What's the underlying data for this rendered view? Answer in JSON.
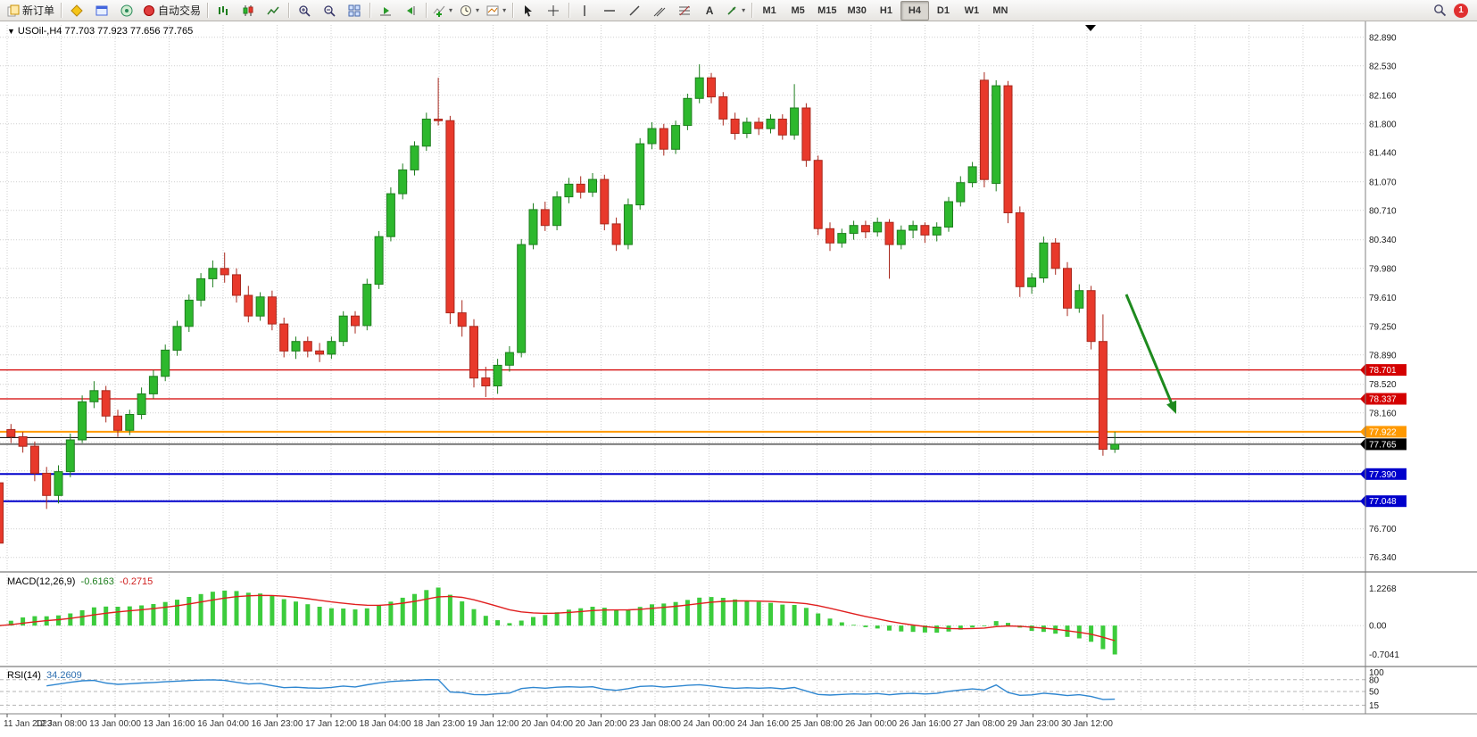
{
  "toolbar": {
    "new_order": "新订单",
    "autotrading": "自动交易",
    "text_tool_label": "A",
    "timeframes": [
      "M1",
      "M5",
      "M15",
      "M30",
      "H1",
      "H4",
      "D1",
      "W1",
      "MN"
    ],
    "active_timeframe": "H4",
    "notification_count": "1"
  },
  "chart": {
    "header": "USOil-,H4  77.703 77.923 77.656 77.765",
    "grid_prices": [
      82.89,
      82.53,
      82.16,
      81.8,
      81.44,
      81.07,
      80.71,
      80.34,
      79.98,
      79.61,
      79.25,
      78.89,
      78.52,
      78.16,
      77.79,
      77.43,
      77.06,
      76.7,
      76.34
    ],
    "price_labels": [
      {
        "v": 82.89,
        "t": "82.890"
      },
      {
        "v": 82.53,
        "t": "82.530"
      },
      {
        "v": 82.16,
        "t": "82.160"
      },
      {
        "v": 81.8,
        "t": "81.800"
      },
      {
        "v": 81.44,
        "t": "81.440"
      },
      {
        "v": 81.07,
        "t": "81.070"
      },
      {
        "v": 80.71,
        "t": "80.710"
      },
      {
        "v": 80.34,
        "t": "80.340"
      },
      {
        "v": 79.98,
        "t": "79.980"
      },
      {
        "v": 79.61,
        "t": "79.610"
      },
      {
        "v": 79.25,
        "t": "79.250"
      },
      {
        "v": 78.89,
        "t": "78.890"
      },
      {
        "v": 78.52,
        "t": "78.520"
      },
      {
        "v": 78.16,
        "t": "78.160"
      },
      {
        "v": 76.7,
        "t": "76.700"
      },
      {
        "v": 76.34,
        "t": "76.340"
      }
    ],
    "hlines": [
      {
        "price": 78.701,
        "label": "78.701",
        "color": "#d40000",
        "width": 1.2
      },
      {
        "price": 78.337,
        "label": "78.337",
        "color": "#d40000",
        "width": 1.2
      },
      {
        "price": 77.922,
        "label": "77.922",
        "color": "#ff9900",
        "width": 2
      },
      {
        "price": 77.85,
        "label": "",
        "color": "#000000",
        "width": 1
      },
      {
        "price": 77.765,
        "label": "77.765",
        "color": "#000000",
        "width": 1
      },
      {
        "price": 77.39,
        "label": "77.390",
        "color": "#0000cc",
        "width": 2
      },
      {
        "price": 77.048,
        "label": "77.048",
        "color": "#0000cc",
        "width": 2
      }
    ],
    "time_labels": [
      "11 Jan 2023",
      "12 Jan 08:00",
      "13 Jan 00:00",
      "13 Jan 16:00",
      "16 Jan 04:00",
      "16 Jan 23:00",
      "17 Jan 12:00",
      "18 Jan 04:00",
      "18 Jan 23:00",
      "19 Jan 12:00",
      "20 Jan 04:00",
      "20 Jan 20:00",
      "23 Jan 08:00",
      "24 Jan 00:00",
      "24 Jan 16:00",
      "25 Jan 08:00",
      "26 Jan 00:00",
      "26 Jan 16:00",
      "27 Jan 08:00",
      "29 Jan 23:00",
      "30 Jan 12:00"
    ],
    "up_color": "#2db82d",
    "up_border": "#1e7e1e",
    "down_color": "#e8392b",
    "down_border": "#a8281d",
    "arrow_color": "#1e8a1e"
  },
  "chart_data": {
    "type": "candlestick",
    "symbol": "USOil-",
    "timeframe": "H4",
    "ohlc": [
      [
        77.28,
        77.32,
        76.4,
        76.52
      ],
      [
        77.95,
        78.02,
        77.78,
        77.86
      ],
      [
        77.86,
        77.92,
        77.66,
        77.74
      ],
      [
        77.74,
        77.8,
        77.3,
        77.4
      ],
      [
        77.4,
        77.48,
        76.95,
        77.12
      ],
      [
        77.12,
        77.5,
        77.02,
        77.42
      ],
      [
        77.42,
        77.9,
        77.35,
        77.82
      ],
      [
        77.82,
        78.38,
        77.78,
        78.3
      ],
      [
        78.3,
        78.56,
        78.22,
        78.44
      ],
      [
        78.44,
        78.5,
        78.04,
        78.12
      ],
      [
        78.12,
        78.2,
        77.86,
        77.94
      ],
      [
        77.94,
        78.2,
        77.88,
        78.14
      ],
      [
        78.14,
        78.48,
        78.08,
        78.4
      ],
      [
        78.4,
        78.7,
        78.34,
        78.62
      ],
      [
        78.62,
        79.02,
        78.56,
        78.95
      ],
      [
        78.95,
        79.32,
        78.88,
        79.25
      ],
      [
        79.25,
        79.65,
        79.18,
        79.58
      ],
      [
        79.58,
        79.92,
        79.5,
        79.85
      ],
      [
        79.85,
        80.08,
        79.74,
        79.98
      ],
      [
        79.98,
        80.18,
        79.8,
        79.9
      ],
      [
        79.9,
        79.98,
        79.55,
        79.64
      ],
      [
        79.64,
        79.76,
        79.3,
        79.38
      ],
      [
        79.38,
        79.68,
        79.32,
        79.62
      ],
      [
        79.62,
        79.7,
        79.2,
        79.28
      ],
      [
        79.28,
        79.36,
        78.86,
        78.94
      ],
      [
        78.94,
        79.12,
        78.84,
        79.06
      ],
      [
        79.06,
        79.12,
        78.86,
        78.94
      ],
      [
        78.94,
        79.04,
        78.8,
        78.9
      ],
      [
        78.9,
        79.12,
        78.84,
        79.06
      ],
      [
        79.06,
        79.44,
        79.0,
        79.38
      ],
      [
        79.38,
        79.44,
        79.16,
        79.26
      ],
      [
        79.26,
        79.85,
        79.2,
        79.78
      ],
      [
        79.78,
        80.45,
        79.72,
        80.38
      ],
      [
        80.38,
        81.0,
        80.32,
        80.92
      ],
      [
        80.92,
        81.3,
        80.85,
        81.22
      ],
      [
        81.22,
        81.58,
        81.15,
        81.52
      ],
      [
        81.52,
        81.94,
        81.46,
        81.86
      ],
      [
        81.86,
        82.38,
        81.78,
        81.84
      ],
      [
        81.84,
        81.9,
        79.28,
        79.42
      ],
      [
        79.42,
        79.58,
        79.12,
        79.25
      ],
      [
        79.25,
        79.34,
        78.48,
        78.6
      ],
      [
        78.6,
        78.74,
        78.36,
        78.5
      ],
      [
        78.5,
        78.84,
        78.4,
        78.76
      ],
      [
        78.76,
        79.0,
        78.68,
        78.92
      ],
      [
        78.92,
        80.35,
        78.86,
        80.28
      ],
      [
        80.28,
        80.8,
        80.22,
        80.72
      ],
      [
        80.72,
        80.82,
        80.45,
        80.52
      ],
      [
        80.52,
        80.95,
        80.46,
        80.88
      ],
      [
        80.88,
        81.12,
        80.8,
        81.04
      ],
      [
        81.04,
        81.14,
        80.86,
        80.94
      ],
      [
        80.94,
        81.18,
        80.88,
        81.1
      ],
      [
        81.1,
        81.16,
        80.46,
        80.54
      ],
      [
        80.54,
        80.62,
        80.2,
        80.28
      ],
      [
        80.28,
        80.86,
        80.22,
        80.78
      ],
      [
        80.78,
        81.62,
        80.72,
        81.55
      ],
      [
        81.55,
        81.82,
        81.48,
        81.74
      ],
      [
        81.74,
        81.8,
        81.4,
        81.48
      ],
      [
        81.48,
        81.84,
        81.42,
        81.78
      ],
      [
        81.78,
        82.18,
        81.72,
        82.12
      ],
      [
        82.12,
        82.55,
        82.06,
        82.38
      ],
      [
        82.38,
        82.44,
        82.06,
        82.14
      ],
      [
        82.14,
        82.2,
        81.78,
        81.86
      ],
      [
        81.86,
        81.94,
        81.6,
        81.68
      ],
      [
        81.68,
        81.88,
        81.62,
        81.82
      ],
      [
        81.82,
        81.88,
        81.66,
        81.74
      ],
      [
        81.74,
        81.92,
        81.68,
        81.86
      ],
      [
        81.86,
        81.92,
        81.6,
        81.66
      ],
      [
        81.66,
        82.3,
        81.6,
        82.0
      ],
      [
        82.0,
        82.06,
        81.26,
        81.34
      ],
      [
        81.34,
        81.4,
        80.4,
        80.48
      ],
      [
        80.48,
        80.56,
        80.2,
        80.3
      ],
      [
        80.3,
        80.48,
        80.24,
        80.42
      ],
      [
        80.42,
        80.58,
        80.34,
        80.52
      ],
      [
        80.52,
        80.58,
        80.36,
        80.44
      ],
      [
        80.44,
        80.62,
        80.38,
        80.56
      ],
      [
        80.56,
        80.6,
        79.85,
        80.28
      ],
      [
        80.28,
        80.52,
        80.22,
        80.46
      ],
      [
        80.46,
        80.58,
        80.36,
        80.52
      ],
      [
        80.52,
        80.56,
        80.3,
        80.4
      ],
      [
        80.4,
        80.56,
        80.32,
        80.5
      ],
      [
        80.5,
        80.88,
        80.44,
        80.82
      ],
      [
        80.82,
        81.14,
        80.76,
        81.06
      ],
      [
        81.06,
        81.32,
        81.0,
        81.26
      ],
      [
        82.35,
        82.45,
        81.0,
        81.1
      ],
      [
        81.05,
        82.35,
        80.95,
        82.28
      ],
      [
        82.28,
        82.34,
        80.55,
        80.68
      ],
      [
        80.68,
        80.76,
        79.62,
        79.75
      ],
      [
        79.75,
        79.92,
        79.66,
        79.86
      ],
      [
        79.86,
        80.38,
        79.8,
        80.3
      ],
      [
        80.3,
        80.36,
        79.9,
        79.98
      ],
      [
        79.98,
        80.06,
        79.38,
        79.48
      ],
      [
        79.48,
        79.78,
        79.42,
        79.7
      ],
      [
        79.7,
        79.76,
        78.96,
        79.06
      ],
      [
        79.06,
        79.4,
        77.62,
        77.703
      ],
      [
        77.703,
        77.923,
        77.656,
        77.765
      ]
    ]
  },
  "macd": {
    "label": "MACD(12,26,9)",
    "value_main": "-0.6163",
    "value_signal": "-0.2715",
    "axis_labels": [
      "1.2268",
      "0.00",
      "-0.7041"
    ],
    "histogram_color": "#3ccc3c",
    "signal_color": "#e01f1f"
  },
  "rsi": {
    "label": "RSI(14)",
    "value": "34.2609",
    "axis_labels": [
      "100",
      "80",
      "50",
      "15"
    ],
    "levels": [
      80,
      50,
      15
    ],
    "line_color": "#2e86d0"
  }
}
